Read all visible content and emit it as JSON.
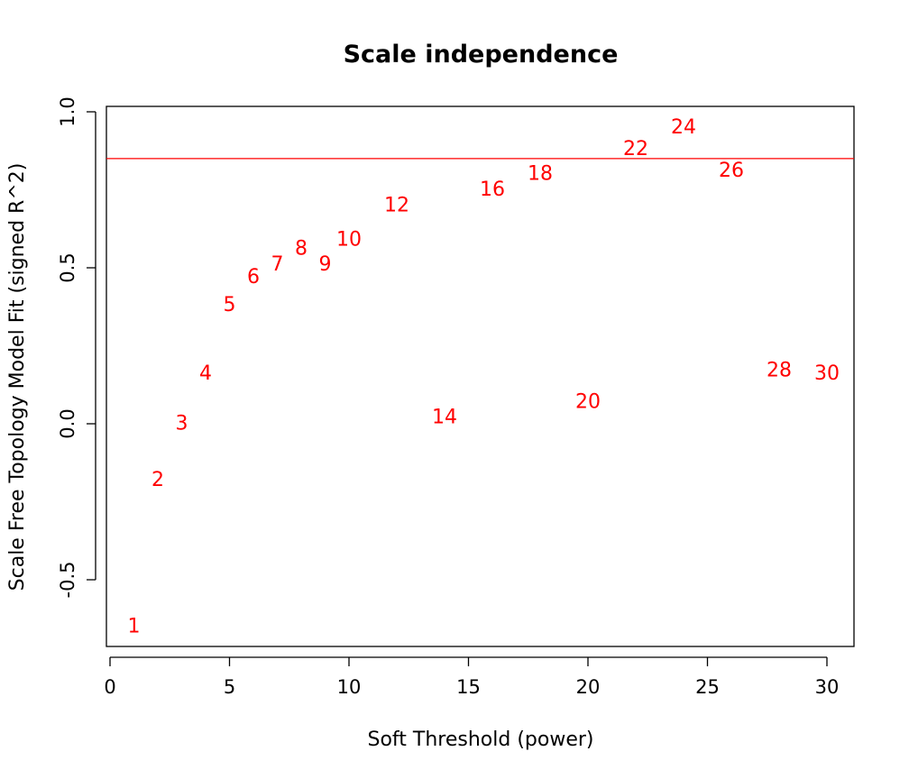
{
  "chart_data": {
    "type": "scatter",
    "title": "Scale independence",
    "xlabel": "Soft Threshold (power)",
    "ylabel": "Scale Free Topology Model Fit (signed R^2)",
    "xlim": [
      0,
      30
    ],
    "ylim": [
      -0.7,
      1.0
    ],
    "x_ticks": [
      0,
      5,
      10,
      15,
      20,
      25,
      30
    ],
    "x_tick_labels": [
      "0",
      "5",
      "10",
      "15",
      "20",
      "25",
      "30"
    ],
    "y_ticks": [
      -0.5,
      0.0,
      0.5,
      1.0
    ],
    "y_tick_labels": [
      "-0.5",
      "0.0",
      "0.5",
      "1.0"
    ],
    "grid": false,
    "marker": "text-label",
    "point_color": "#ff0000",
    "reference_line": {
      "y": 0.85,
      "color": "#ff0000"
    },
    "points": [
      {
        "x": 1,
        "y": -0.65,
        "label": "1"
      },
      {
        "x": 2,
        "y": -0.18,
        "label": "2"
      },
      {
        "x": 3,
        "y": 0.0,
        "label": "3"
      },
      {
        "x": 4,
        "y": 0.16,
        "label": "4"
      },
      {
        "x": 5,
        "y": 0.38,
        "label": "5"
      },
      {
        "x": 6,
        "y": 0.47,
        "label": "6"
      },
      {
        "x": 7,
        "y": 0.51,
        "label": "7"
      },
      {
        "x": 8,
        "y": 0.56,
        "label": "8"
      },
      {
        "x": 9,
        "y": 0.51,
        "label": "9"
      },
      {
        "x": 10,
        "y": 0.59,
        "label": "10"
      },
      {
        "x": 12,
        "y": 0.7,
        "label": "12"
      },
      {
        "x": 14,
        "y": 0.02,
        "label": "14"
      },
      {
        "x": 16,
        "y": 0.75,
        "label": "16"
      },
      {
        "x": 18,
        "y": 0.8,
        "label": "18"
      },
      {
        "x": 20,
        "y": 0.07,
        "label": "20"
      },
      {
        "x": 22,
        "y": 0.88,
        "label": "22"
      },
      {
        "x": 24,
        "y": 0.95,
        "label": "24"
      },
      {
        "x": 26,
        "y": 0.81,
        "label": "26"
      },
      {
        "x": 28,
        "y": 0.17,
        "label": "28"
      },
      {
        "x": 30,
        "y": 0.16,
        "label": "30"
      }
    ]
  }
}
